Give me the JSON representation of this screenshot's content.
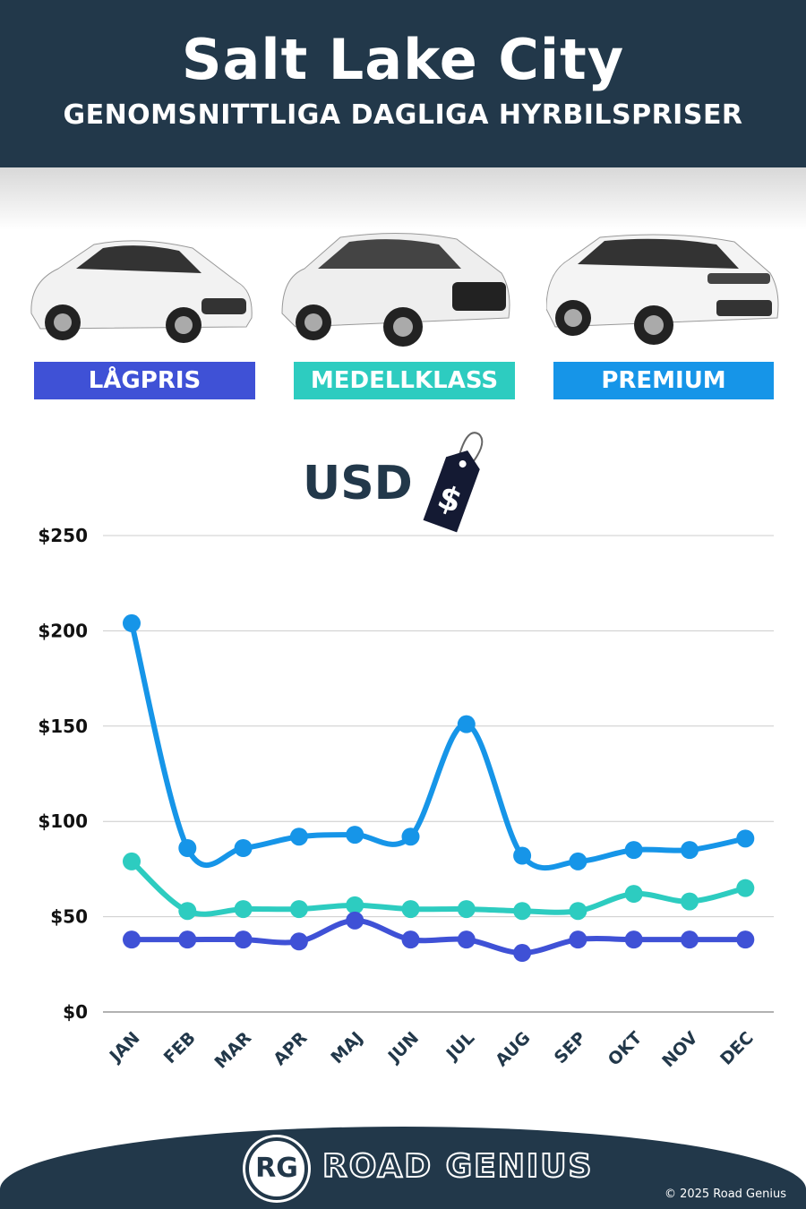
{
  "header": {
    "title": "Salt Lake City",
    "subtitle": "GENOMSNITTLIGA DAGLIGA HYRBILSPRISER"
  },
  "categories": [
    {
      "label": "LÅGPRIS",
      "color": "#3f51d6"
    },
    {
      "label": "MEDELLKLASS",
      "color": "#2dccc0"
    },
    {
      "label": "PREMIUM",
      "color": "#1695e8"
    }
  ],
  "currency": {
    "label": "USD",
    "icon": "price-tag-icon",
    "tag_symbol": "$"
  },
  "chart_data": {
    "type": "line",
    "title": "",
    "xlabel": "",
    "ylabel": "",
    "categories": [
      "JAN",
      "FEB",
      "MAR",
      "APR",
      "MAJ",
      "JUN",
      "JUL",
      "AUG",
      "SEP",
      "OKT",
      "NOV",
      "DEC"
    ],
    "ylim": [
      0,
      250
    ],
    "yticks": [
      "$0",
      "$50",
      "$100",
      "$150",
      "$200",
      "$250"
    ],
    "ytick_values": [
      0,
      50,
      100,
      150,
      200,
      250
    ],
    "grid": true,
    "series": [
      {
        "name": "PREMIUM",
        "color": "#1695e8",
        "values": [
          204,
          86,
          86,
          92,
          93,
          92,
          151,
          82,
          79,
          85,
          85,
          91
        ]
      },
      {
        "name": "MEDELLKLASS",
        "color": "#2dccc0",
        "values": [
          79,
          53,
          54,
          54,
          56,
          54,
          54,
          53,
          53,
          62,
          58,
          65
        ]
      },
      {
        "name": "LÅGPRIS",
        "color": "#3f51d6",
        "values": [
          38,
          38,
          38,
          37,
          48,
          38,
          38,
          31,
          38,
          38,
          38,
          38
        ]
      }
    ]
  },
  "footer": {
    "logo_text": "RG",
    "brand": "ROAD GENIUS",
    "copyright": "© 2025 Road Genius"
  }
}
